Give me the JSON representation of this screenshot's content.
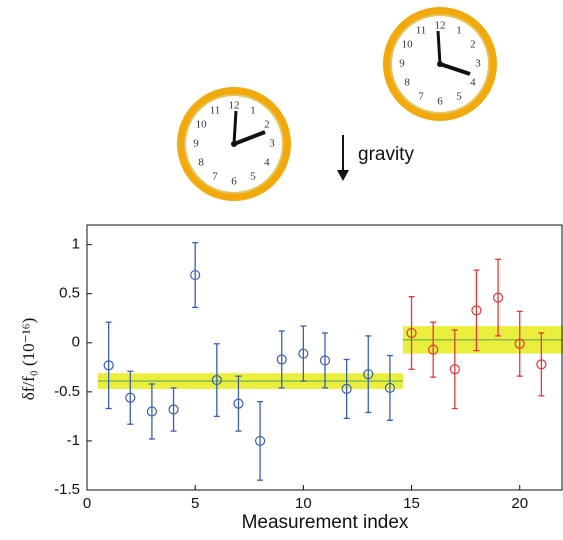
{
  "chart_data": {
    "type": "errorbar",
    "xlabel": "Measurement index",
    "ylabel": "δf/f₀ (10⁻¹⁶)",
    "annotations": [
      "gravity"
    ],
    "xlim": [
      0,
      22
    ],
    "ylim": [
      -1.5,
      1.2
    ],
    "xticks": [
      0,
      5,
      10,
      15,
      20
    ],
    "yticks": [
      -1.5,
      -1,
      -0.5,
      0,
      0.5,
      1
    ],
    "series": [
      {
        "color": "#3a5fb0",
        "x": [
          1,
          2,
          3,
          4,
          5,
          6,
          7,
          8,
          9,
          10,
          11,
          12,
          13,
          14
        ],
        "values": [
          -0.23,
          -0.56,
          -0.7,
          -0.68,
          0.69,
          -0.38,
          -0.62,
          -1.0,
          -0.17,
          -0.11,
          -0.18,
          -0.47,
          -0.32,
          -0.46
        ],
        "errors": [
          0.44,
          0.27,
          0.28,
          0.22,
          0.33,
          0.37,
          0.28,
          0.4,
          0.29,
          0.28,
          0.28,
          0.3,
          0.39,
          0.33
        ]
      },
      {
        "color": "#e03a3a",
        "x": [
          15,
          16,
          17,
          18,
          19,
          20,
          21
        ],
        "values": [
          0.1,
          -0.07,
          -0.27,
          0.33,
          0.46,
          -0.01,
          -0.22
        ],
        "errors": [
          0.37,
          0.28,
          0.4,
          0.41,
          0.39,
          0.33,
          0.32
        ]
      }
    ],
    "bands": [
      {
        "x": [
          0.5,
          14.6
        ],
        "center": -0.39,
        "halfwidth": 0.08,
        "color": "#e9ef3c",
        "line_color": "#6aa84f"
      },
      {
        "x": [
          14.6,
          22
        ],
        "center": 0.03,
        "halfwidth": 0.14,
        "color": "#e9ef3c",
        "line_color": "#6aa84f"
      }
    ]
  },
  "clocks": {
    "numerals": [
      "12",
      "1",
      "2",
      "3",
      "4",
      "5",
      "6",
      "7",
      "8",
      "9",
      "10",
      "11"
    ]
  }
}
